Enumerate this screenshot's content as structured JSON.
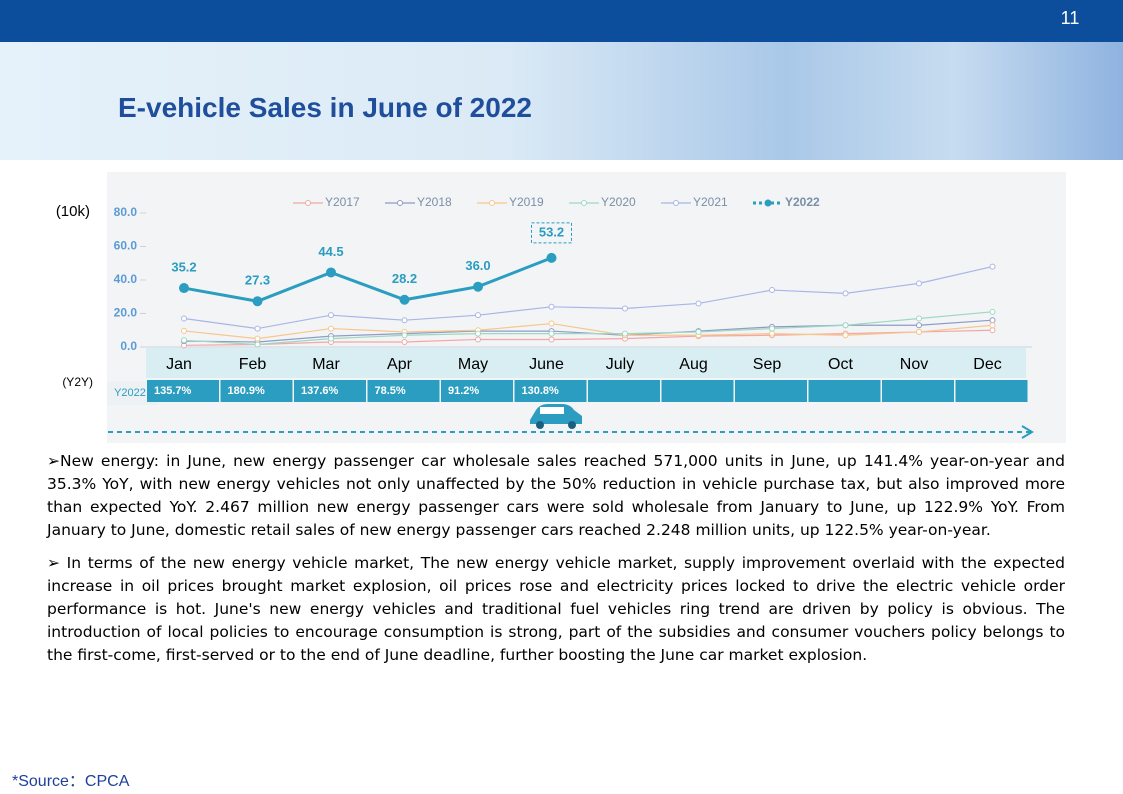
{
  "page_number": "11",
  "title": "E-vehicle Sales in June of 2022",
  "chart_data": {
    "type": "line",
    "ylabel": "(10k)",
    "categories": [
      "Jan",
      "Feb",
      "Mar",
      "Apr",
      "May",
      "June",
      "July",
      "Aug",
      "Sep",
      "Oct",
      "Nov",
      "Dec"
    ],
    "ylim": [
      0,
      80
    ],
    "yticks": [
      {
        "value": 0,
        "label": "0.0"
      },
      {
        "value": 20,
        "label": "20.0"
      },
      {
        "value": 40,
        "label": "40.0"
      },
      {
        "value": 60,
        "label": "60.0"
      },
      {
        "value": 80,
        "label": "80.0"
      }
    ],
    "grid": false,
    "legend": "top",
    "series": [
      {
        "name": "Y2017",
        "color": "#f2a7a7",
        "values": [
          1,
          1.5,
          3,
          3,
          4.5,
          4.5,
          5,
          6.5,
          7,
          8,
          9,
          10
        ]
      },
      {
        "name": "Y2018",
        "color": "#8e9cc6",
        "values": [
          3.5,
          3,
          6.5,
          8,
          9.5,
          9.5,
          7,
          9.5,
          12,
          13,
          13,
          16
        ]
      },
      {
        "name": "Y2019",
        "color": "#f7c68a",
        "values": [
          9.6,
          5,
          11,
          9,
          10,
          14,
          7,
          7,
          8,
          7,
          9,
          13
        ]
      },
      {
        "name": "Y2020",
        "color": "#9ed8c2",
        "values": [
          4,
          1.5,
          5,
          7,
          8,
          8,
          8,
          9,
          11,
          13,
          17,
          21
        ]
      },
      {
        "name": "Y2021",
        "color": "#a8b6e6",
        "values": [
          17,
          11,
          19,
          16,
          19,
          24,
          23,
          26,
          34,
          32,
          38,
          48
        ]
      },
      {
        "name": "Y2022",
        "color": "#2a9dc0",
        "values": [
          35.2,
          27.3,
          44.5,
          28.2,
          36.0,
          53.2,
          null,
          null,
          null,
          null,
          null,
          null
        ],
        "value_labels": [
          "35.2",
          "27.3",
          "44.5",
          "28.2",
          "36.0",
          "53.2",
          null,
          null,
          null,
          null,
          null,
          null
        ]
      }
    ],
    "yoy": {
      "label": "(Y2Y)",
      "values": [
        "135.7%",
        "180.9%",
        "137.6%",
        "78.5%",
        "91.2%",
        "130.8%"
      ]
    }
  },
  "paragraphs": [
    "➢New energy: in June, new energy passenger car wholesale sales reached 571,000 units in June, up 141.4% year-on-year and 35.3% YoY, with new energy vehicles not only unaffected by the 50% reduction in vehicle purchase tax, but also improved more than expected YoY. 2.467 million new energy passenger cars were sold wholesale from January to June, up 122.9% YoY. From January to June, domestic retail sales of new energy passenger cars reached 2.248 million units, up 122.5% year-on-year.",
    "➢ In terms of the new energy vehicle market, The new energy vehicle market, supply improvement overlaid with the expected increase in oil prices brought market explosion, oil prices rose and electricity prices locked to drive the electric vehicle order performance is hot. June's new energy vehicles and traditional fuel vehicles ring trend are driven by policy is obvious. The introduction of local policies to encourage consumption is strong, part of the subsidies and consumer vouchers policy belongs to the first-come, first-served or to the end of June deadline, further boosting the June car market explosion."
  ],
  "source": "*Source：CPCA"
}
